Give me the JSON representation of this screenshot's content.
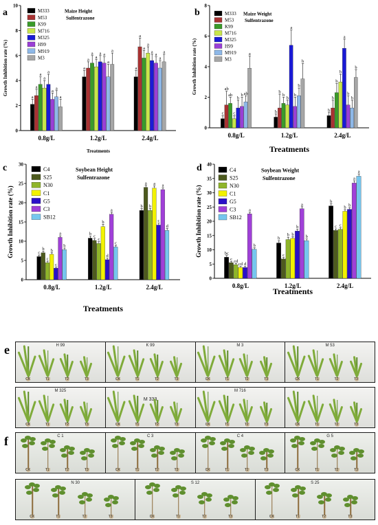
{
  "chart_data": [
    {
      "panel": "a",
      "type": "bar",
      "legend_title": "Maize Height",
      "legend_subtitle": "Sulfentrazone",
      "ylabel": "Growth Inhibition rate (%)",
      "xlabel": "Treatments",
      "ylim": [
        0,
        10
      ],
      "yticks": [
        "0",
        "2",
        "4",
        "6",
        "8",
        "10"
      ],
      "categories": [
        "0.8g/L",
        "1.2g/L",
        "2.4g/L"
      ],
      "series": [
        {
          "name": "M333",
          "color": "#000000",
          "values": [
            2.1,
            4.3,
            4.3
          ],
          "errors": [
            0.4,
            0.5,
            0.5
          ],
          "letters": [
            "a",
            "a",
            "a"
          ]
        },
        {
          "name": "M53",
          "color": "#a83232",
          "values": [
            2.8,
            5.0,
            6.7
          ],
          "errors": [
            0.5,
            0.5,
            0.7
          ],
          "letters": [
            "a",
            "a",
            "a"
          ]
        },
        {
          "name": "K99",
          "color": "#3a9b2a",
          "values": [
            3.7,
            5.4,
            5.8
          ],
          "errors": [
            0.6,
            0.6,
            0.6
          ],
          "letters": [
            "a",
            "a",
            "a"
          ]
        },
        {
          "name": "M716",
          "color": "#c8e64a",
          "values": [
            3.4,
            5.1,
            6.2
          ],
          "errors": [
            0.6,
            0.6,
            0.5
          ],
          "letters": [
            "a",
            "a",
            "a"
          ]
        },
        {
          "name": "M325",
          "color": "#1a1ad6",
          "values": [
            3.7,
            5.5,
            5.6
          ],
          "errors": [
            0.8,
            0.5,
            0.5
          ],
          "letters": [
            "a",
            "a",
            "a"
          ]
        },
        {
          "name": "H99",
          "color": "#9a3fd6",
          "values": [
            2.5,
            5.4,
            5.4
          ],
          "errors": [
            0.5,
            0.5,
            0.5
          ],
          "letters": [
            "a",
            "a",
            "a"
          ]
        },
        {
          "name": "M919",
          "color": "#8eb8e8",
          "values": [
            2.7,
            4.3,
            5.0
          ],
          "errors": [
            0.5,
            1.0,
            0.6
          ],
          "letters": [
            "a",
            "a",
            "a"
          ]
        },
        {
          "name": "M3",
          "color": "#a6a6a6",
          "values": [
            1.9,
            5.3,
            5.5
          ],
          "errors": [
            0.6,
            0.9,
            0.6
          ],
          "letters": [
            "a",
            "a",
            "a"
          ]
        }
      ]
    },
    {
      "panel": "b",
      "type": "bar",
      "legend_title": "Maize Weight",
      "legend_subtitle": "Sulfentrazone",
      "ylabel": "Growth Inhibition rate (%)",
      "xlabel": "Treatments",
      "ylim": [
        0,
        8
      ],
      "yticks": [
        "0",
        "2",
        "4",
        "6",
        "8"
      ],
      "categories": [
        "0.8g/L",
        "1.2g/L",
        "2.4g/L"
      ],
      "series": [
        {
          "name": "M333",
          "color": "#000000",
          "values": [
            0.6,
            0.7,
            0.8
          ],
          "errors": [
            0.2,
            0.2,
            0.2
          ],
          "letters": [
            "c",
            "b",
            "b"
          ]
        },
        {
          "name": "M53",
          "color": "#a83232",
          "values": [
            1.5,
            1.3,
            1.3
          ],
          "errors": [
            0.9,
            0.9,
            0.5
          ],
          "letters": [
            "ab",
            "b",
            "b"
          ]
        },
        {
          "name": "K99",
          "color": "#3a9b2a",
          "values": [
            1.6,
            1.6,
            2.3
          ],
          "errors": [
            0.4,
            0.4,
            0.6
          ],
          "letters": [
            "ab",
            "b",
            "b"
          ]
        },
        {
          "name": "M716",
          "color": "#c8e64a",
          "values": [
            0.6,
            1.5,
            3.0
          ],
          "errors": [
            0.2,
            0.3,
            0.5
          ],
          "letters": [
            "c",
            "b",
            "b"
          ]
        },
        {
          "name": "M325",
          "color": "#1a1ad6",
          "values": [
            1.3,
            5.4,
            5.2
          ],
          "errors": [
            0.5,
            1.0,
            0.6
          ],
          "letters": [
            "b",
            "a",
            "a"
          ]
        },
        {
          "name": "H99",
          "color": "#9a3fd6",
          "values": [
            1.4,
            1.4,
            1.5
          ],
          "errors": [
            0.6,
            0.6,
            0.6
          ],
          "letters": [
            "b",
            "b",
            "b"
          ]
        },
        {
          "name": "M919",
          "color": "#8eb8e8",
          "values": [
            1.7,
            2.1,
            1.3
          ],
          "errors": [
            0.4,
            0.5,
            0.5
          ],
          "letters": [
            "ab",
            "b",
            "b"
          ]
        },
        {
          "name": "M3",
          "color": "#a6a6a6",
          "values": [
            3.9,
            3.2,
            3.3
          ],
          "errors": [
            0.8,
            1.0,
            0.5
          ],
          "letters": [
            "a",
            "b",
            "b"
          ]
        }
      ]
    },
    {
      "panel": "c",
      "type": "bar",
      "legend_title": "Soybean Height",
      "legend_subtitle": "Sulfentrazone",
      "ylabel": "Growth Inhibition rate (%)",
      "xlabel": "Treatments",
      "ylim": [
        0,
        30
      ],
      "yticks": [
        "0",
        "5",
        "10",
        "15",
        "20",
        "25",
        "30"
      ],
      "categories": [
        "0.8g/L",
        "1.2g/L",
        "2.4g/L"
      ],
      "series": [
        {
          "name": "C4",
          "color": "#000000",
          "values": [
            6.0,
            10.8,
            18.0
          ],
          "errors": [
            0.4,
            0.5,
            0.5
          ],
          "letters": [
            "c",
            "b",
            "b"
          ]
        },
        {
          "name": "S25",
          "color": "#4d5a1e",
          "values": [
            7.0,
            10.2,
            24.0
          ],
          "errors": [
            0.4,
            0.5,
            0.5
          ],
          "letters": [
            "b",
            "c",
            "a"
          ]
        },
        {
          "name": "N30",
          "color": "#8fb52a",
          "values": [
            4.4,
            9.4,
            18.0
          ],
          "errors": [
            0.4,
            0.5,
            0.5
          ],
          "letters": [
            "c",
            "c",
            "b"
          ]
        },
        {
          "name": "C1",
          "color": "#f2f200",
          "values": [
            6.6,
            13.8,
            23.8
          ],
          "errors": [
            0.4,
            0.6,
            0.6
          ],
          "letters": [
            "b",
            "b",
            "a"
          ]
        },
        {
          "name": "G5",
          "color": "#2b10c8",
          "values": [
            3.0,
            5.2,
            14.2
          ],
          "errors": [
            0.3,
            0.4,
            0.5
          ],
          "letters": [
            "c",
            "d",
            "c"
          ]
        },
        {
          "name": "C3",
          "color": "#a040d8",
          "values": [
            11.0,
            17.0,
            23.4
          ],
          "errors": [
            0.4,
            0.5,
            0.5
          ],
          "letters": [
            "a",
            "a",
            "a"
          ]
        },
        {
          "name": "SB12",
          "color": "#76c6ee",
          "values": [
            7.8,
            8.5,
            12.8
          ],
          "errors": [
            0.4,
            0.4,
            0.5
          ],
          "letters": [
            "b",
            "c",
            "d"
          ]
        }
      ]
    },
    {
      "panel": "d",
      "type": "bar",
      "legend_title": "Soybean Weight",
      "legend_subtitle": "Sulfentrazone",
      "ylabel": "Growth Inhibition rate (%)",
      "xlabel": "Treatments",
      "ylim": [
        0,
        40
      ],
      "yticks": [
        "0",
        "5",
        "10",
        "15",
        "20",
        "25",
        "30",
        "35",
        "40"
      ],
      "categories": [
        "0.8g/L",
        "1.2g/L",
        "2.4g/L"
      ],
      "series": [
        {
          "name": "C4",
          "color": "#000000",
          "values": [
            7.4,
            12.4,
            25.4
          ],
          "errors": [
            0.6,
            0.8,
            0.8
          ],
          "letters": [
            "bc",
            "b",
            "b"
          ]
        },
        {
          "name": "S25",
          "color": "#4d5a1e",
          "values": [
            5.5,
            6.8,
            16.8
          ],
          "errors": [
            0.4,
            0.5,
            0.5
          ],
          "letters": [
            "c",
            "c",
            "c"
          ]
        },
        {
          "name": "N30",
          "color": "#8fb52a",
          "values": [
            4.8,
            13.6,
            17.2
          ],
          "errors": [
            0.4,
            0.8,
            0.6
          ],
          "letters": [
            "cd",
            "b",
            "c"
          ]
        },
        {
          "name": "C1",
          "color": "#f2f200",
          "values": [
            3.8,
            14.0,
            23.5
          ],
          "errors": [
            0.4,
            0.6,
            0.6
          ],
          "letters": [
            "cd",
            "b",
            "b"
          ]
        },
        {
          "name": "G5",
          "color": "#2b10c8",
          "values": [
            3.8,
            16.6,
            24.2
          ],
          "errors": [
            0.4,
            0.6,
            0.6
          ],
          "letters": [
            "d",
            "b",
            "b"
          ]
        },
        {
          "name": "C3",
          "color": "#a040d8",
          "values": [
            22.6,
            24.4,
            33.4
          ],
          "errors": [
            0.5,
            0.7,
            0.8
          ],
          "letters": [
            "a",
            "a",
            "a"
          ]
        },
        {
          "name": "SB12",
          "color": "#76c6ee",
          "values": [
            10.2,
            13.2,
            35.8
          ],
          "errors": [
            0.5,
            0.6,
            0.8
          ],
          "letters": [
            "b",
            "b",
            "a"
          ]
        }
      ]
    }
  ],
  "photos": {
    "e_letter": "e",
    "f_letter": "f",
    "treatments": [
      "CK",
      "T1",
      "T2",
      "T3"
    ],
    "e_row1": [
      "H 99",
      "K 99",
      "M 3",
      "M 53"
    ],
    "e_row2": [
      "M 325",
      "M 333",
      "M 716",
      ""
    ],
    "f_row1": [
      "C 1",
      "C 3",
      "C 4",
      "G 5"
    ],
    "f_row2": [
      "N 30",
      "S 12",
      "S 25"
    ]
  }
}
